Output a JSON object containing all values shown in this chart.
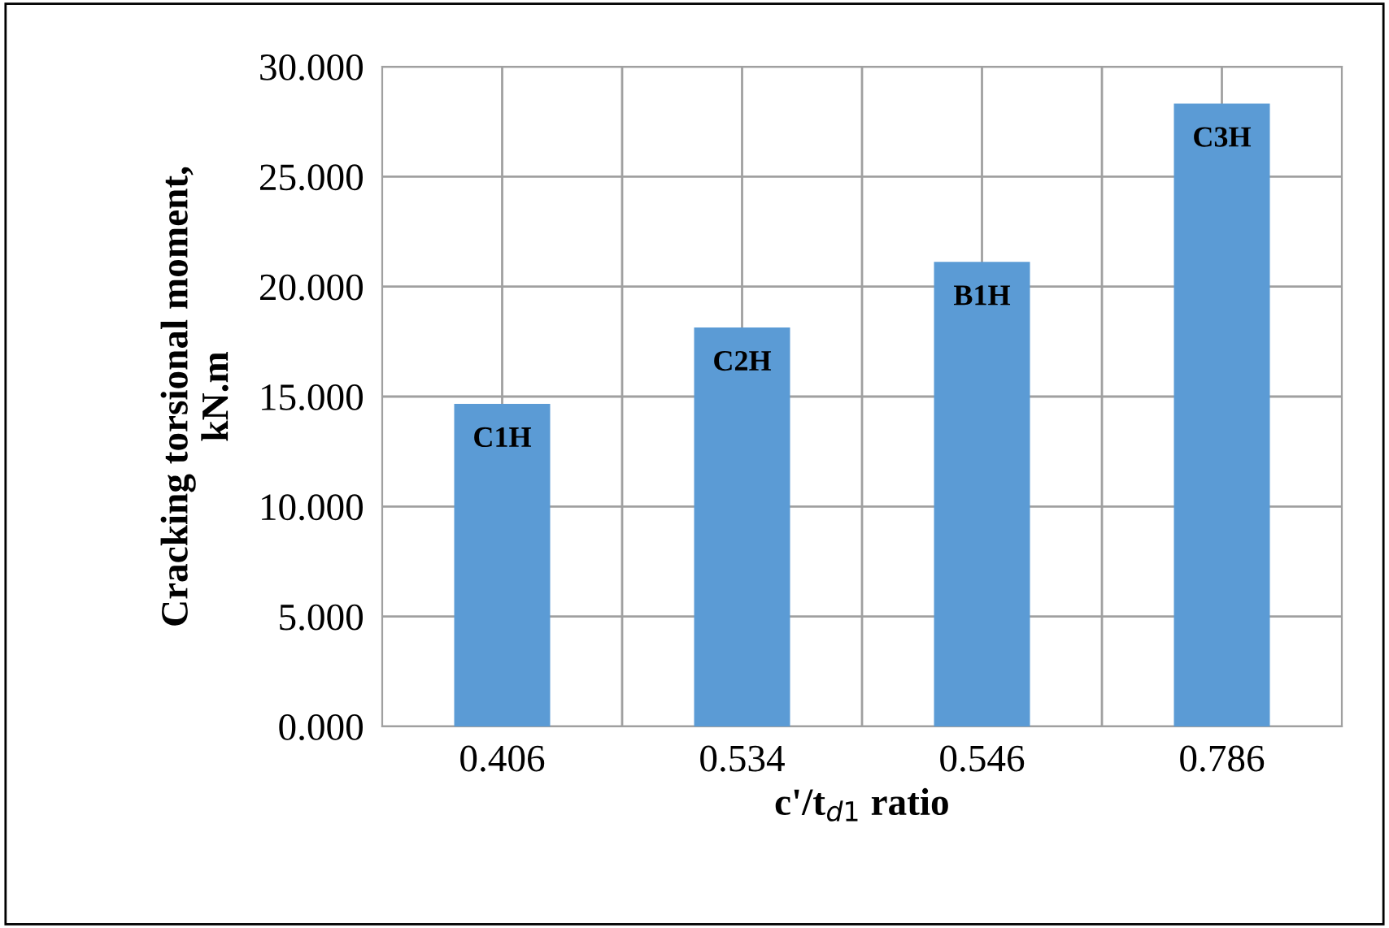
{
  "chart_data": {
    "type": "bar",
    "xlabel": "c'/t$_{d1}$ ratio",
    "ylabel": "Cracking torsional moment,\nkN.m",
    "categories": [
      "0.406",
      "0.534",
      "0.546",
      "0.786"
    ],
    "values": [
      14.67,
      18.14,
      21.12,
      28.32
    ],
    "color": "#5b9bd5",
    "ylim": [
      0,
      30
    ],
    "yticks": [
      {
        "value": 0,
        "label": "0.000"
      },
      {
        "value": 5,
        "label": "5.000"
      },
      {
        "value": 10,
        "label": "10.000"
      },
      {
        "value": 15,
        "label": "15.000"
      },
      {
        "value": 20,
        "label": "20.000"
      },
      {
        "value": 25,
        "label": "25.000"
      },
      {
        "value": 30,
        "label": "30.000"
      }
    ],
    "grid": true,
    "annotations": [
      {
        "text": "C1H",
        "x": "0.406",
        "y": 14.67
      },
      {
        "text": "C2H",
        "x": "0.534",
        "y": 18.14
      },
      {
        "text": "B1H",
        "x": "0.546",
        "y": 21.12
      },
      {
        "text": "C3H",
        "x": "0.786",
        "y": 28.32
      }
    ]
  }
}
